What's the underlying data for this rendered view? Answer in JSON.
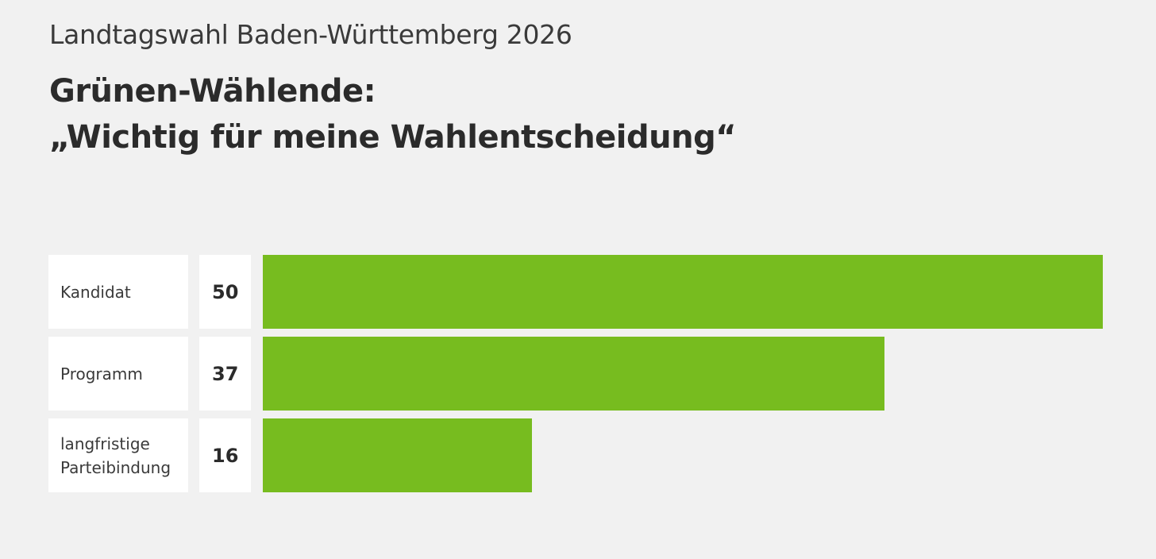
{
  "header": {
    "kicker": "Landtagswahl Baden-Württemberg 2026",
    "title_line1": "Grünen-Wählende:",
    "title_line2": "„Wichtig für meine Wahlentscheidung“"
  },
  "colors": {
    "bar": "#77bc1f",
    "background": "#f1f1f1",
    "cell": "#ffffff"
  },
  "chart_data": {
    "type": "bar",
    "orientation": "horizontal",
    "title": "Grünen-Wählende: „Wichtig für meine Wahlentscheidung“",
    "categories": [
      "Kandidat",
      "Programm",
      "langfristige Parteibindung"
    ],
    "values": [
      50,
      37,
      16
    ],
    "xlim": [
      0,
      50
    ],
    "grid": false,
    "legend": "none"
  }
}
